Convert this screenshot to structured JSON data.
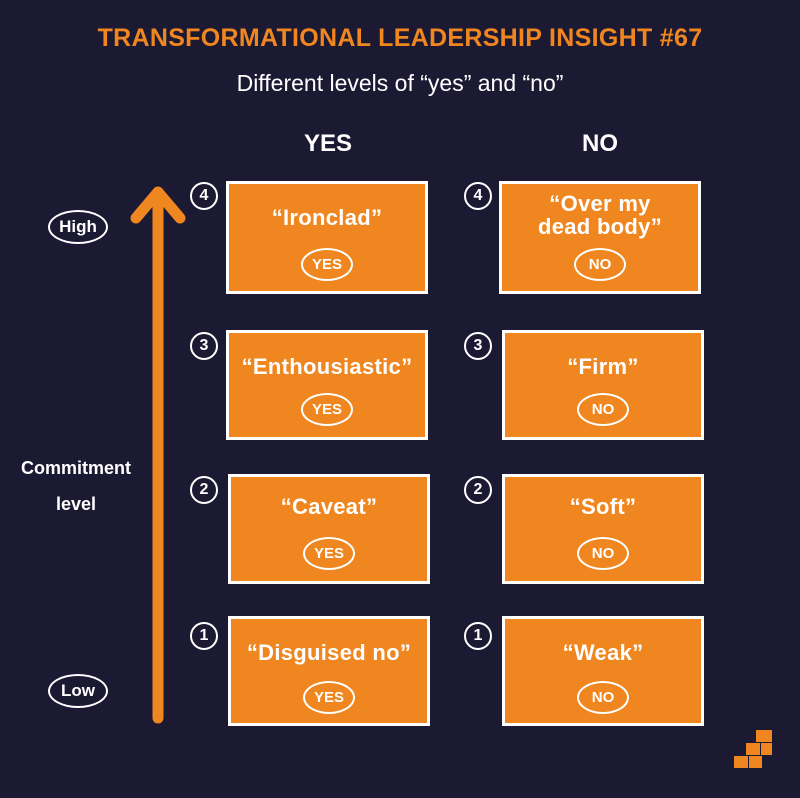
{
  "title": "TRANSFORMATIONAL LEADERSHIP INSIGHT #67",
  "subtitle": "Different levels of “yes” and “no”",
  "columns": {
    "yes": "YES",
    "no": "NO"
  },
  "axis": {
    "high": "High",
    "low": "Low",
    "label_line1": "Commitment",
    "label_line2": "level"
  },
  "colors": {
    "background": "#1c1a33",
    "accent": "#f0861f",
    "text": "#ffffff"
  },
  "levels": [
    {
      "number": "4",
      "yes": "“Ironclad”",
      "no": "“Over my dead body”"
    },
    {
      "number": "3",
      "yes": "“Enthousiastic”",
      "no": "“Firm”"
    },
    {
      "number": "2",
      "yes": "“Caveat”",
      "no": "“Soft”"
    },
    {
      "number": "1",
      "yes": "“Disguised no”",
      "no": "“Weak”"
    }
  ],
  "badges": {
    "yes": "YES",
    "no": "NO"
  },
  "icons": {
    "arrow": "up-arrow-icon",
    "logo": "logo-icon"
  }
}
